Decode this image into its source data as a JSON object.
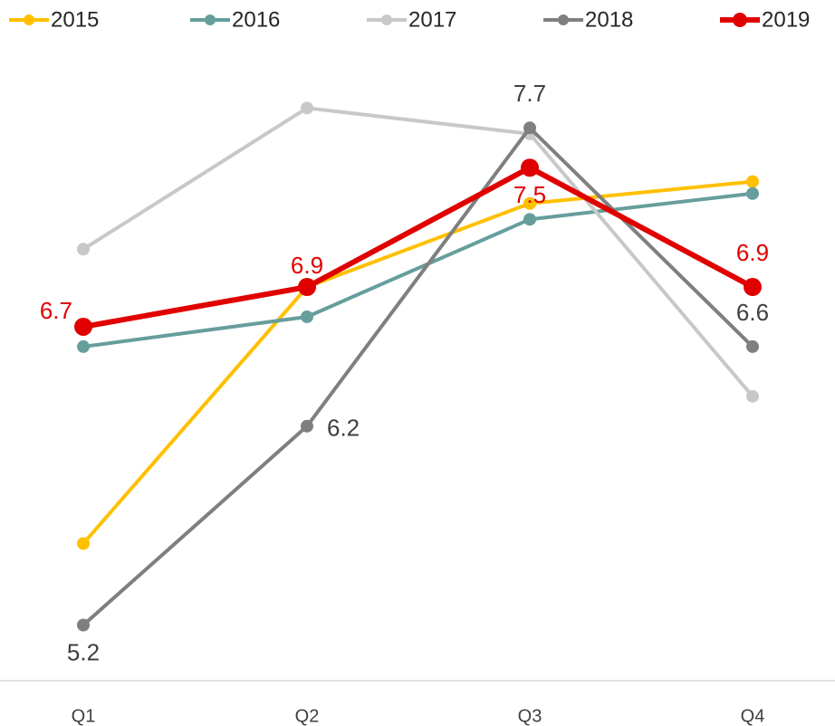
{
  "chart_data": {
    "type": "line",
    "categories": [
      "Q1",
      "Q2",
      "Q3",
      "Q4"
    ],
    "series": [
      {
        "name": "2015",
        "color": "#ffc000",
        "values": [
          5.61,
          6.9,
          7.32,
          7.43
        ]
      },
      {
        "name": "2016",
        "color": "#669e9c",
        "values": [
          6.6,
          6.75,
          7.24,
          7.37
        ]
      },
      {
        "name": "2017",
        "color": "#c8c8c8",
        "values": [
          7.09,
          7.8,
          7.67,
          6.35
        ]
      },
      {
        "name": "2018",
        "color": "#7f7f7f",
        "values": [
          5.2,
          6.2,
          7.7,
          6.6
        ],
        "data_labels": true
      },
      {
        "name": "2019",
        "color": "#e00000",
        "values": [
          6.7,
          6.9,
          7.5,
          6.9
        ],
        "data_labels": true
      }
    ],
    "ylim": [
      4.92,
      8.07
    ],
    "legend": "top"
  }
}
